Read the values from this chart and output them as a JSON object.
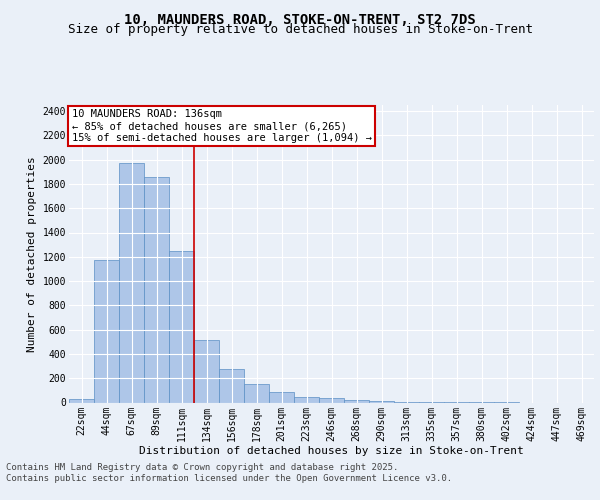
{
  "title_line1": "10, MAUNDERS ROAD, STOKE-ON-TRENT, ST2 7DS",
  "title_line2": "Size of property relative to detached houses in Stoke-on-Trent",
  "xlabel": "Distribution of detached houses by size in Stoke-on-Trent",
  "ylabel": "Number of detached properties",
  "categories": [
    "22sqm",
    "44sqm",
    "67sqm",
    "89sqm",
    "111sqm",
    "134sqm",
    "156sqm",
    "178sqm",
    "201sqm",
    "223sqm",
    "246sqm",
    "268sqm",
    "290sqm",
    "313sqm",
    "335sqm",
    "357sqm",
    "380sqm",
    "402sqm",
    "424sqm",
    "447sqm",
    "469sqm"
  ],
  "values": [
    25,
    1170,
    1970,
    1860,
    1250,
    515,
    275,
    155,
    85,
    48,
    40,
    22,
    10,
    5,
    3,
    2,
    1,
    1,
    0,
    0,
    0
  ],
  "bar_color": "#aec6e8",
  "bar_edge_color": "#5a8fc4",
  "vline_x": 4.5,
  "annotation_text": "10 MAUNDERS ROAD: 136sqm\n← 85% of detached houses are smaller (6,265)\n15% of semi-detached houses are larger (1,094) →",
  "annotation_box_color": "#ffffff",
  "annotation_box_edge_color": "#cc0000",
  "footer_line1": "Contains HM Land Registry data © Crown copyright and database right 2025.",
  "footer_line2": "Contains public sector information licensed under the Open Government Licence v3.0.",
  "ylim": [
    0,
    2450
  ],
  "background_color": "#eaf0f8",
  "plot_bg_color": "#eaf0f8",
  "grid_color": "#ffffff",
  "vline_color": "#cc0000",
  "title_fontsize": 10,
  "subtitle_fontsize": 9,
  "tick_fontsize": 7,
  "ylabel_fontsize": 8,
  "xlabel_fontsize": 8,
  "annotation_fontsize": 7.5,
  "footer_fontsize": 6.5
}
